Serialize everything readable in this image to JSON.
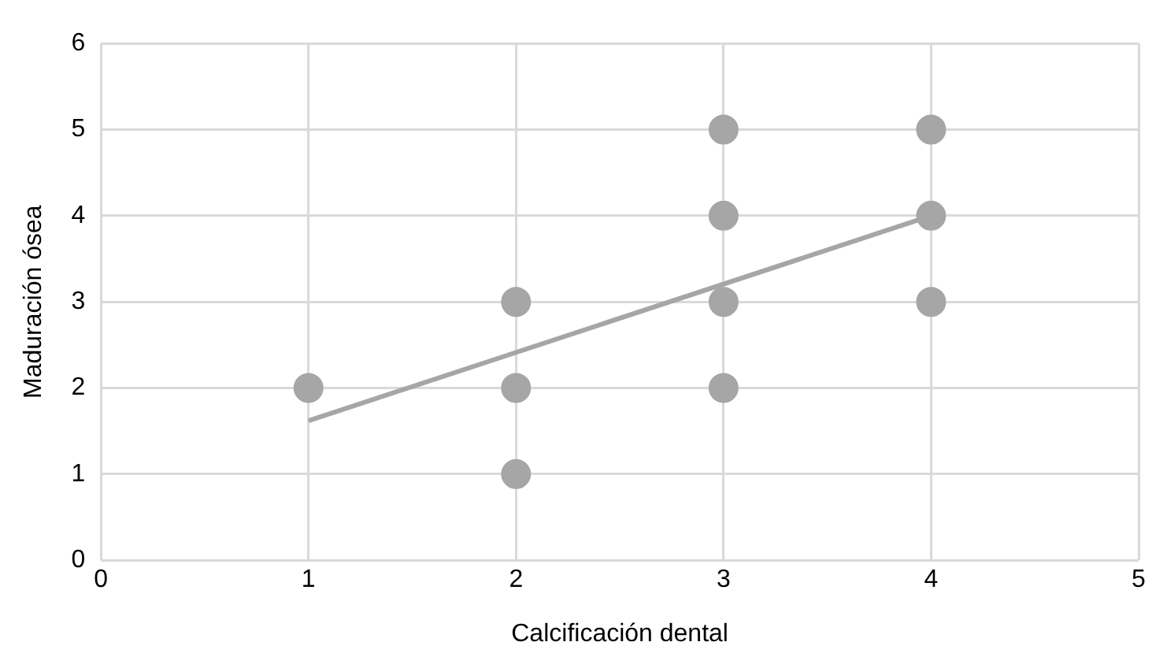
{
  "chart_data": {
    "type": "scatter",
    "xlabel": "Calcificación dental",
    "ylabel": "Maduración ósea",
    "series": [
      {
        "color": "#a6a6a6",
        "x": [
          1,
          2,
          2,
          2,
          3,
          3,
          3,
          3,
          4,
          4,
          4
        ],
        "values": [
          2,
          1,
          2,
          3,
          2,
          3,
          4,
          5,
          3,
          4,
          5
        ]
      },
      {
        "type": "line",
        "marker": "none",
        "color": "#a6a6a6",
        "x": [
          1,
          4
        ],
        "values": [
          1.62,
          4.0
        ]
      }
    ],
    "xlim": [
      0,
      5
    ],
    "xticks": [
      0,
      1,
      2,
      3,
      4,
      5
    ],
    "ylim": [
      0,
      6
    ],
    "yticks": [
      0,
      1,
      2,
      3,
      4,
      5,
      6
    ],
    "grid": true,
    "legend": false,
    "marker": "circle"
  }
}
